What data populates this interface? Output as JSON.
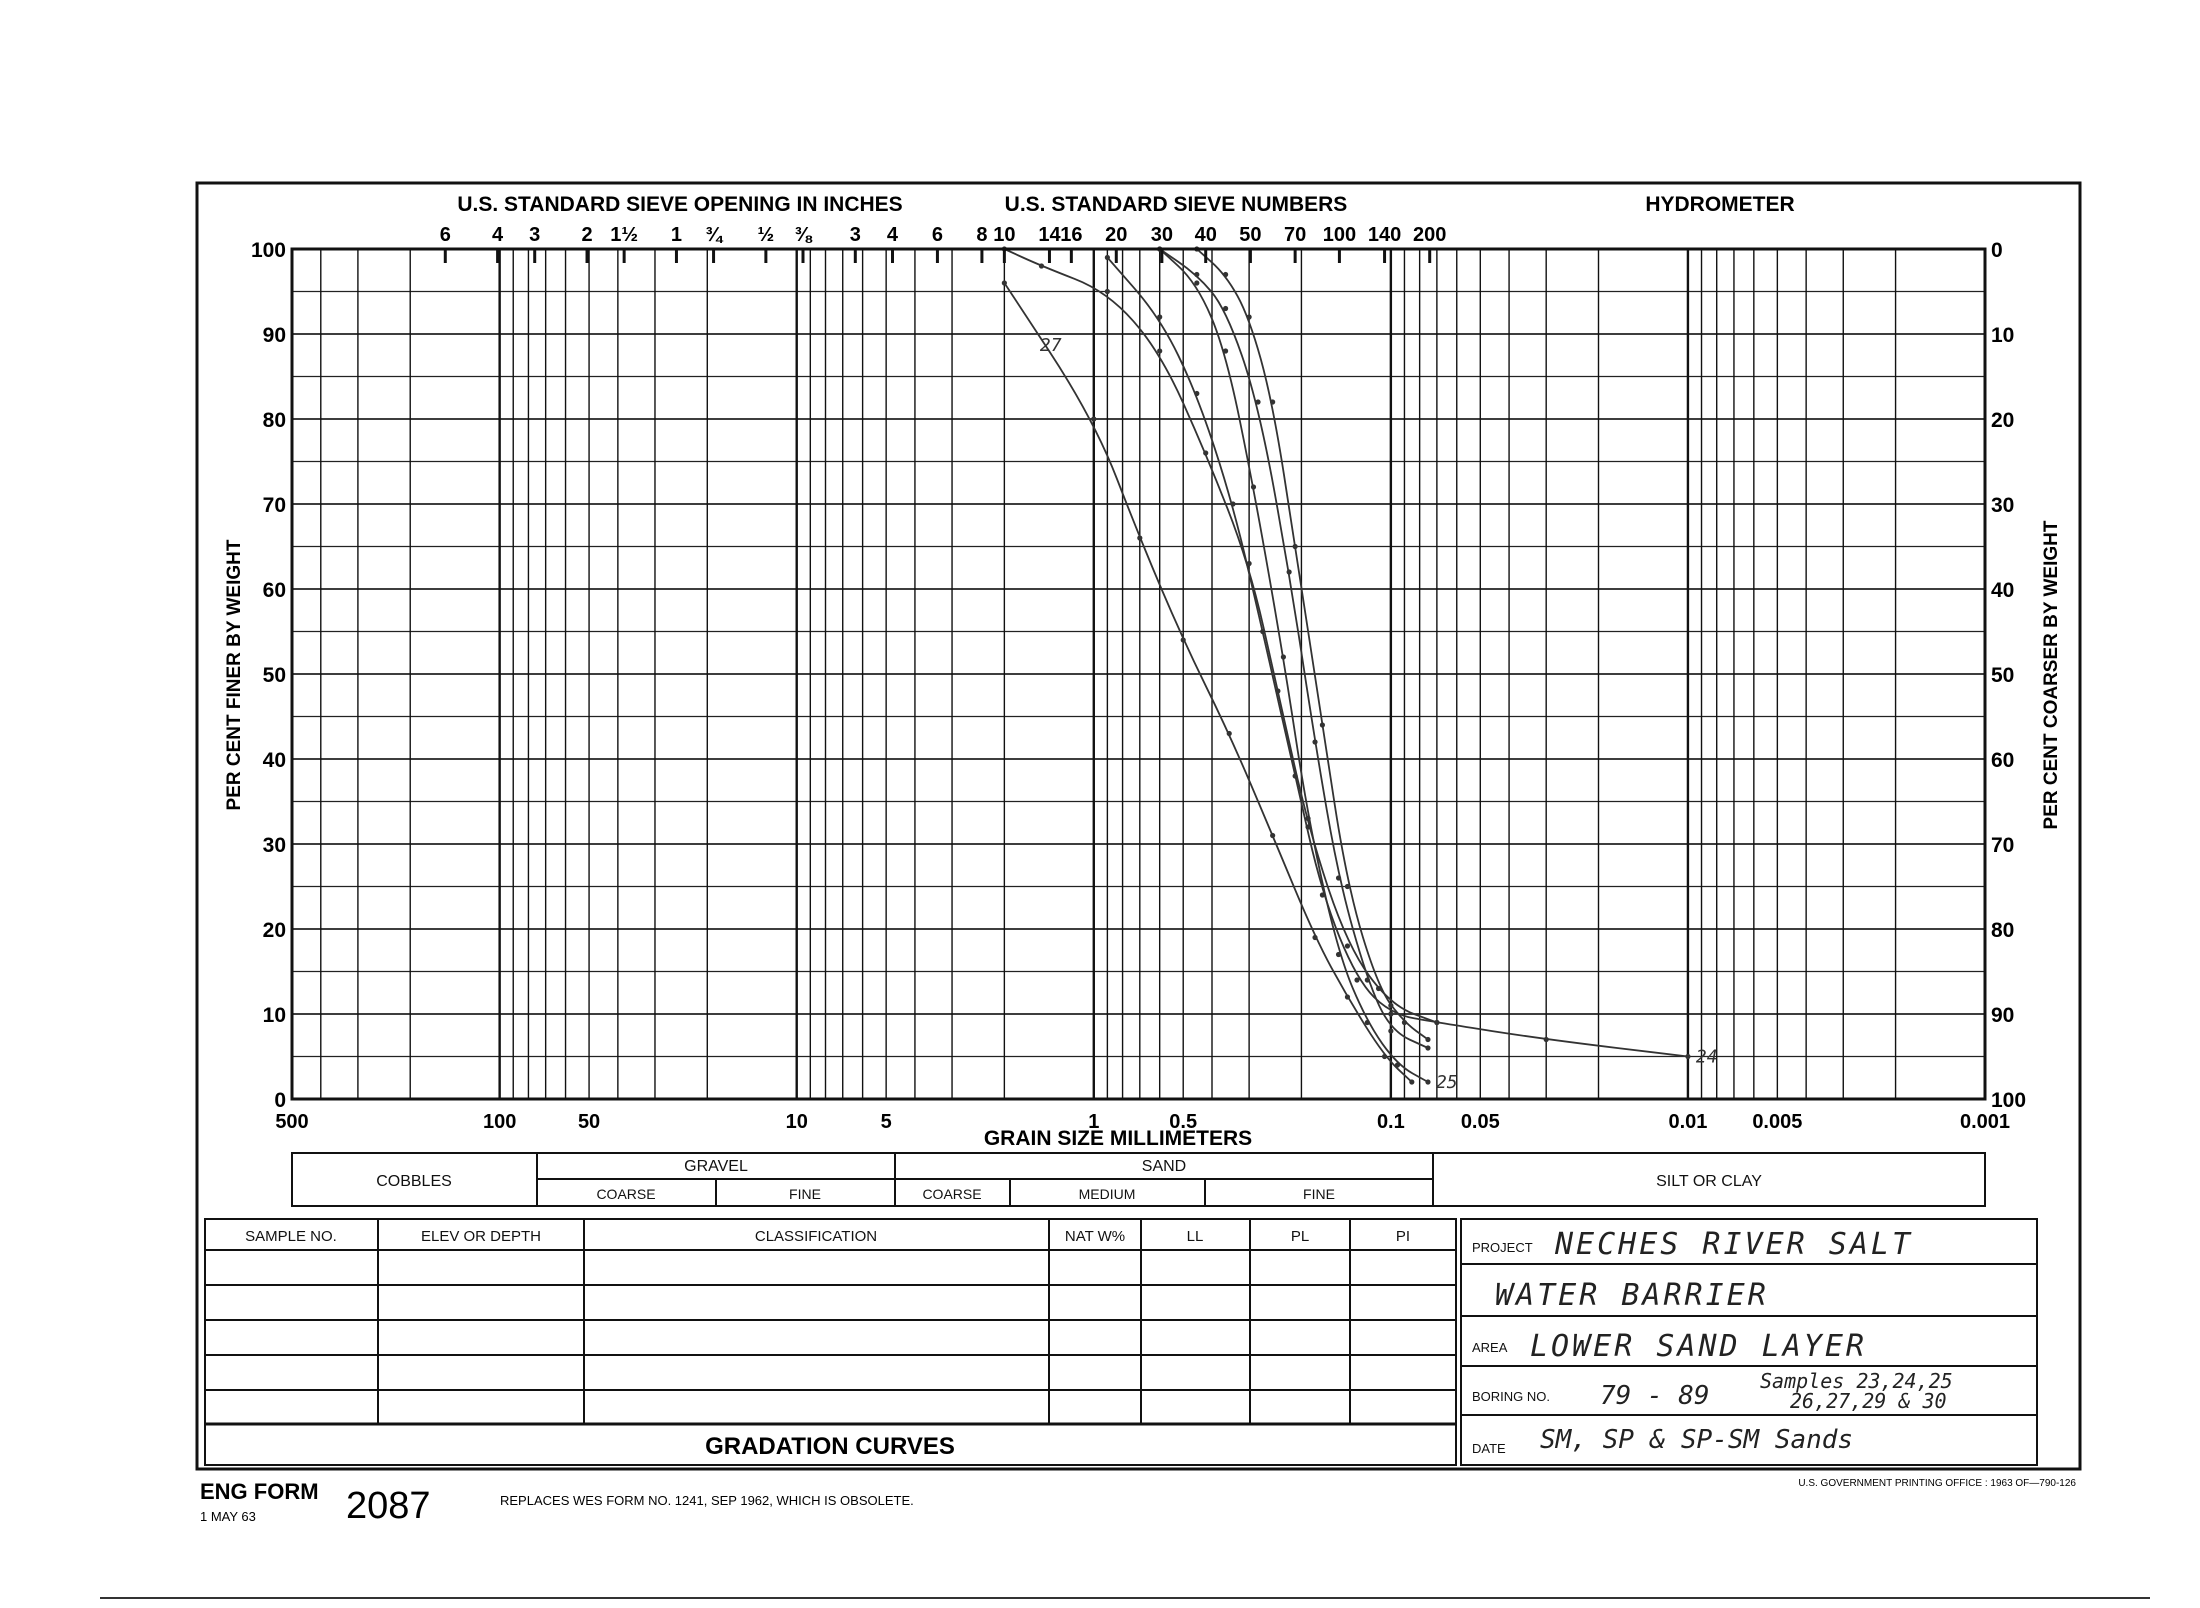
{
  "chart_data": {
    "type": "line",
    "x_scale": "log",
    "xlim": [
      500,
      0.001
    ],
    "ylim": [
      0,
      100
    ],
    "grid": true,
    "xlabel": "GRAIN SIZE MILLIMETERS",
    "ylabel_left": "PER CENT FINER BY WEIGHT",
    "ylabel_right": "PER CENT COARSER BY WEIGHT",
    "y_ticks_left": [
      "0",
      "10",
      "20",
      "30",
      "40",
      "50",
      "60",
      "70",
      "80",
      "90",
      "100"
    ],
    "y_ticks_right": [
      "100",
      "90",
      "80",
      "70",
      "60",
      "50",
      "40",
      "30",
      "20",
      "10",
      "0"
    ],
    "x_tick_labels": [
      {
        "label": "500",
        "mm": 500
      },
      {
        "label": "100",
        "mm": 100
      },
      {
        "label": "50",
        "mm": 50
      },
      {
        "label": "10",
        "mm": 10
      },
      {
        "label": "5",
        "mm": 5
      },
      {
        "label": "1",
        "mm": 1
      },
      {
        "label": "0.5",
        "mm": 0.5
      },
      {
        "label": "0.1",
        "mm": 0.1
      },
      {
        "label": "0.05",
        "mm": 0.05
      },
      {
        "label": "0.01",
        "mm": 0.01
      },
      {
        "label": "0.005",
        "mm": 0.005
      },
      {
        "label": "0.001",
        "mm": 0.001
      }
    ],
    "top_headers": {
      "inches": "U.S. STANDARD SIEVE OPENING IN INCHES",
      "numbers": "U.S. STANDARD SIEVE NUMBERS",
      "hydrometer": "HYDROMETER"
    },
    "sieve_inches": [
      {
        "label": "6",
        "mm": 152.4
      },
      {
        "label": "4",
        "mm": 101.6
      },
      {
        "label": "3",
        "mm": 76.2
      },
      {
        "label": "2",
        "mm": 50.8
      },
      {
        "label": "1½",
        "mm": 38.1
      },
      {
        "label": "1",
        "mm": 25.4
      },
      {
        "label": "¾",
        "mm": 19.05
      },
      {
        "label": "½",
        "mm": 12.7
      },
      {
        "label": "⅜",
        "mm": 9.525
      }
    ],
    "sieve_numbers": [
      {
        "label": "3",
        "mm": 6.35
      },
      {
        "label": "4",
        "mm": 4.76
      },
      {
        "label": "6",
        "mm": 3.36
      },
      {
        "label": "8",
        "mm": 2.38
      },
      {
        "label": "10",
        "mm": 2.0
      },
      {
        "label": "14",
        "mm": 1.41
      },
      {
        "label": "16",
        "mm": 1.19
      },
      {
        "label": "20",
        "mm": 0.84
      },
      {
        "label": "30",
        "mm": 0.59
      },
      {
        "label": "40",
        "mm": 0.42
      },
      {
        "label": "50",
        "mm": 0.297
      },
      {
        "label": "70",
        "mm": 0.21
      },
      {
        "label": "100",
        "mm": 0.149
      },
      {
        "label": "140",
        "mm": 0.105
      },
      {
        "label": "200",
        "mm": 0.074
      }
    ],
    "series": [
      {
        "name": "27",
        "points": [
          [
            2.0,
            96
          ],
          [
            1.0,
            80
          ],
          [
            0.7,
            66
          ],
          [
            0.5,
            54
          ],
          [
            0.35,
            43
          ],
          [
            0.25,
            31
          ],
          [
            0.18,
            19
          ],
          [
            0.14,
            12
          ],
          [
            0.105,
            5
          ],
          [
            0.085,
            2
          ]
        ]
      },
      {
        "name": "",
        "points": [
          [
            2.0,
            100
          ],
          [
            1.5,
            98
          ],
          [
            0.9,
            95
          ],
          [
            0.6,
            88
          ],
          [
            0.42,
            76
          ],
          [
            0.3,
            63
          ],
          [
            0.24,
            48
          ],
          [
            0.19,
            32
          ],
          [
            0.14,
            18
          ],
          [
            0.1,
            11
          ],
          [
            0.07,
            9
          ]
        ]
      },
      {
        "name": "24",
        "points": [
          [
            0.9,
            99
          ],
          [
            0.6,
            92
          ],
          [
            0.45,
            83
          ],
          [
            0.34,
            70
          ],
          [
            0.27,
            55
          ],
          [
            0.21,
            38
          ],
          [
            0.17,
            24
          ],
          [
            0.13,
            14
          ],
          [
            0.1,
            10
          ],
          [
            0.07,
            9
          ],
          [
            0.03,
            7
          ],
          [
            0.01,
            5
          ]
        ]
      },
      {
        "name": "25",
        "points": [
          [
            0.6,
            100
          ],
          [
            0.45,
            96
          ],
          [
            0.36,
            88
          ],
          [
            0.29,
            72
          ],
          [
            0.23,
            52
          ],
          [
            0.19,
            33
          ],
          [
            0.15,
            17
          ],
          [
            0.12,
            9
          ],
          [
            0.095,
            4
          ],
          [
            0.075,
            2
          ]
        ]
      },
      {
        "name": "",
        "points": [
          [
            0.6,
            100
          ],
          [
            0.45,
            97
          ],
          [
            0.36,
            93
          ],
          [
            0.28,
            82
          ],
          [
            0.22,
            62
          ],
          [
            0.18,
            42
          ],
          [
            0.15,
            26
          ],
          [
            0.12,
            14
          ],
          [
            0.1,
            8
          ],
          [
            0.075,
            6
          ]
        ]
      },
      {
        "name": "",
        "points": [
          [
            0.45,
            100
          ],
          [
            0.36,
            97
          ],
          [
            0.3,
            92
          ],
          [
            0.25,
            82
          ],
          [
            0.21,
            65
          ],
          [
            0.17,
            44
          ],
          [
            0.14,
            25
          ],
          [
            0.11,
            13
          ],
          [
            0.09,
            9
          ],
          [
            0.075,
            7
          ]
        ]
      }
    ]
  },
  "soil_classes": {
    "cobbles": "COBBLES",
    "gravel": "GRAVEL",
    "sand": "SAND",
    "silt_clay": "SILT OR CLAY",
    "coarse": "COARSE",
    "fine": "FINE",
    "medium": "MEDIUM"
  },
  "sample_table": {
    "headers": [
      "SAMPLE NO.",
      "ELEV OR DEPTH",
      "CLASSIFICATION",
      "NAT W%",
      "LL",
      "PL",
      "PI"
    ],
    "title": "GRADATION CURVES"
  },
  "info": {
    "project_label": "PROJECT",
    "project_value": "NECHES RIVER SALT",
    "project_value2": "WATER BARRIER",
    "area_label": "AREA",
    "area_value": "LOWER SAND LAYER",
    "boring_label": "BORING NO.",
    "boring_value": "79 - 89",
    "samples_value": "Samples 23,24,25",
    "samples_value2": "26,27,29 & 30",
    "date_label": "DATE",
    "date_value": "SM, SP & SP-SM Sands"
  },
  "footer": {
    "form_label": "ENG FORM",
    "form_date": "1 MAY 63",
    "form_number": "2087",
    "replaces": "REPLACES WES FORM NO. 1241, SEP 1962, WHICH IS OBSOLETE.",
    "printing": "U.S. GOVERNMENT PRINTING OFFICE : 1963 OF—790-126"
  }
}
